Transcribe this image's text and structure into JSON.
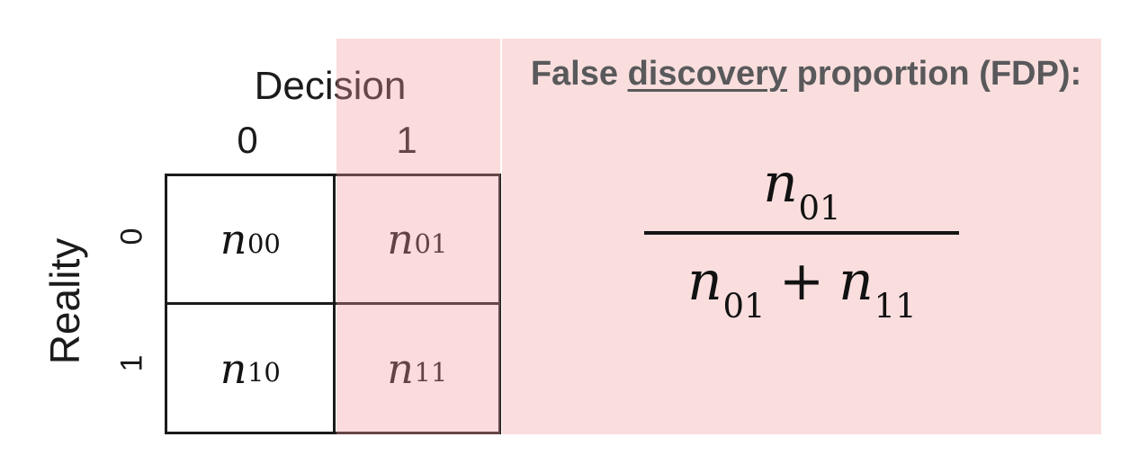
{
  "matrix": {
    "column_axis_label": "Decision",
    "row_axis_label": "Reality",
    "column_headers": [
      "0",
      "1"
    ],
    "row_headers": [
      "0",
      "1"
    ],
    "cells": {
      "r0c0": {
        "base": "n",
        "sub": "00"
      },
      "r0c1": {
        "base": "n",
        "sub": "01"
      },
      "r1c0": {
        "base": "n",
        "sub": "10"
      },
      "r1c1": {
        "base": "n",
        "sub": "11"
      }
    }
  },
  "panel": {
    "title": {
      "pre": "False ",
      "underlined": "discovery",
      "post": " proportion (FDP):"
    },
    "formula": {
      "numerator": {
        "base": "n",
        "sub": "01"
      },
      "denominator_left": {
        "base": "n",
        "sub": "01"
      },
      "operator": "+",
      "denominator_right": {
        "base": "n",
        "sub": "11"
      }
    }
  },
  "colors": {
    "panel_pink": "#fadede",
    "highlight_overlay": "rgba(243,153,153,0.35)",
    "ink": "#1b1b1b",
    "formula_ink": "#121212",
    "title_gray": "#59595b"
  }
}
